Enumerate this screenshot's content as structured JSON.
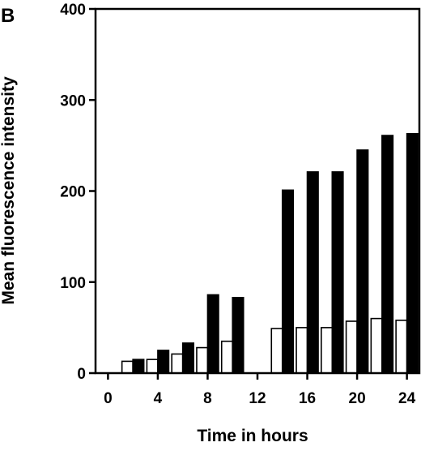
{
  "panel_label": "B",
  "chart_data": {
    "type": "bar",
    "xlabel": "Time in hours",
    "ylabel": "Mean fluorescence intensity",
    "ylim": [
      0,
      400
    ],
    "xlim": [
      -1,
      25
    ],
    "y_ticks": [
      0,
      100,
      200,
      300,
      400
    ],
    "x_ticks": [
      0,
      4,
      8,
      12,
      16,
      20,
      24
    ],
    "grid": false,
    "legend": "none",
    "series": [
      {
        "fill": "#ffffff",
        "stroke": "#000000",
        "points": [
          {
            "x": 2,
            "y": 13
          },
          {
            "x": 4,
            "y": 15
          },
          {
            "x": 6,
            "y": 21
          },
          {
            "x": 8,
            "y": 28
          },
          {
            "x": 10,
            "y": 35
          },
          {
            "x": 14,
            "y": 49
          },
          {
            "x": 16,
            "y": 50
          },
          {
            "x": 18,
            "y": 50
          },
          {
            "x": 20,
            "y": 57
          },
          {
            "x": 22,
            "y": 60
          },
          {
            "x": 24,
            "y": 58
          }
        ]
      },
      {
        "fill": "#000000",
        "stroke": "#000000",
        "points": [
          {
            "x": 2,
            "y": 15
          },
          {
            "x": 4,
            "y": 25
          },
          {
            "x": 6,
            "y": 33
          },
          {
            "x": 8,
            "y": 86
          },
          {
            "x": 10,
            "y": 83
          },
          {
            "x": 14,
            "y": 201
          },
          {
            "x": 16,
            "y": 221
          },
          {
            "x": 18,
            "y": 221
          },
          {
            "x": 20,
            "y": 245
          },
          {
            "x": 22,
            "y": 261
          },
          {
            "x": 24,
            "y": 263
          }
        ]
      }
    ]
  }
}
